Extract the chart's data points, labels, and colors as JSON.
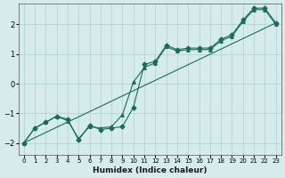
{
  "xlabel": "Humidex (Indice chaleur)",
  "ylabel": "",
  "bg_color": "#d6ecec",
  "grid_color": "#b0d0d0",
  "line_color": "#1a6b5a",
  "xlim": [
    -0.5,
    23.5
  ],
  "ylim": [
    -2.4,
    2.7
  ],
  "x_ticks": [
    0,
    1,
    2,
    3,
    4,
    5,
    6,
    7,
    8,
    9,
    10,
    11,
    12,
    13,
    14,
    15,
    16,
    17,
    18,
    19,
    20,
    21,
    22,
    23
  ],
  "y_ticks": [
    -2,
    -1,
    0,
    1,
    2
  ],
  "series1_x": [
    0,
    1,
    2,
    3,
    4,
    5,
    6,
    7,
    8,
    9,
    10,
    11,
    12,
    13,
    14,
    15,
    16,
    17,
    18,
    19,
    20,
    21,
    22,
    23
  ],
  "series1_y": [
    -2.0,
    -1.5,
    -1.3,
    -1.1,
    -1.2,
    -1.9,
    -1.4,
    -1.55,
    -1.5,
    -1.45,
    -0.8,
    0.65,
    0.75,
    1.3,
    1.15,
    1.2,
    1.2,
    1.2,
    1.5,
    1.65,
    2.15,
    2.55,
    2.55,
    2.05
  ],
  "series2_x": [
    0,
    1,
    2,
    3,
    4,
    5,
    6,
    7,
    8,
    9,
    10,
    11,
    12,
    13,
    14,
    15,
    16,
    17,
    18,
    19,
    20,
    21,
    22,
    23
  ],
  "series2_y": [
    -2.0,
    -1.5,
    -1.3,
    -1.1,
    -1.25,
    -1.85,
    -1.45,
    -1.5,
    -1.45,
    -1.05,
    0.05,
    0.55,
    0.7,
    1.25,
    1.1,
    1.15,
    1.15,
    1.15,
    1.45,
    1.6,
    2.1,
    2.5,
    2.5,
    2.0
  ],
  "series3_x": [
    0,
    23
  ],
  "series3_y": [
    -2.0,
    2.05
  ],
  "marker1": "D",
  "marker2": "^"
}
